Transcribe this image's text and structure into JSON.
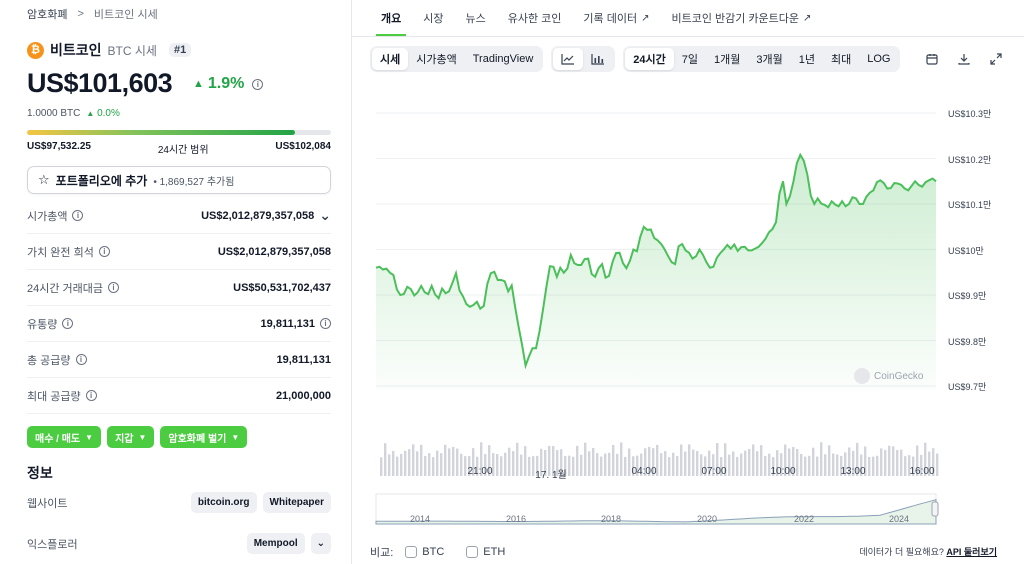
{
  "breadcrumb": {
    "home": "암호화폐",
    "separator": ">",
    "current": "비트코인 시세"
  },
  "coin": {
    "name": "비트코인",
    "symbol_label": "BTC 시세",
    "rank": "#1",
    "logo_glyph": "₿",
    "logo_color": "#f7931a"
  },
  "price": {
    "value": "US$101,603",
    "change": "1.9%",
    "change_color": "#22a447",
    "btc_value": "1.0000 BTC",
    "btc_change": "0.0%"
  },
  "range_24h": {
    "low": "US$97,532.25",
    "label": "24시간 범위",
    "high": "US$102,084",
    "position": 0.88
  },
  "portfolio": {
    "label": "포트폴리오에 추가",
    "count": "• 1,869,527 추가됨"
  },
  "stats": [
    {
      "label": "시가총액",
      "value": "US$2,012,879,357,058",
      "has_info": true,
      "suffix": "chevron-down"
    },
    {
      "label": "가치 완전 희석",
      "value": "US$2,012,879,357,058",
      "has_info": true,
      "suffix": ""
    },
    {
      "label": "24시간 거래대금",
      "value": "US$50,531,702,437",
      "has_info": true,
      "suffix": ""
    },
    {
      "label": "유통량",
      "value": "19,811,131",
      "has_info": true,
      "suffix": "info"
    },
    {
      "label": "총 공급량",
      "value": "19,811,131",
      "has_info": true,
      "suffix": ""
    },
    {
      "label": "최대 공급량",
      "value": "21,000,000",
      "has_info": true,
      "suffix": ""
    }
  ],
  "actions": [
    "매수 / 매도",
    "지갑",
    "암호화폐 벌기"
  ],
  "info": {
    "heading": "정보",
    "website_label": "웹사이트",
    "website_links": [
      "bitcoin.org",
      "Whitepaper"
    ],
    "explorer_label": "익스플로러",
    "explorer_links": [
      "Mempool"
    ]
  },
  "tabs": [
    {
      "label": "개요",
      "active": true,
      "external": false
    },
    {
      "label": "시장",
      "active": false,
      "external": false
    },
    {
      "label": "뉴스",
      "active": false,
      "external": false
    },
    {
      "label": "유사한 코인",
      "active": false,
      "external": false
    },
    {
      "label": "기록 데이터",
      "active": false,
      "external": true
    },
    {
      "label": "비트코인 반감기 카운트다운",
      "active": false,
      "external": true
    }
  ],
  "toolbar": {
    "views": [
      {
        "label": "시세",
        "on": true
      },
      {
        "label": "시가총액",
        "on": false
      },
      {
        "label": "TradingView",
        "on": false
      }
    ],
    "chart_types": [
      "line-chart-icon",
      "bar-chart-icon"
    ],
    "ranges": [
      {
        "label": "24시간",
        "on": true
      },
      {
        "label": "7일",
        "on": false
      },
      {
        "label": "1개월",
        "on": false
      },
      {
        "label": "3개월",
        "on": false
      },
      {
        "label": "1년",
        "on": false
      },
      {
        "label": "최대",
        "on": false
      },
      {
        "label": "LOG",
        "on": false
      }
    ],
    "icons": [
      "calendar-icon",
      "download-icon",
      "expand-icon"
    ]
  },
  "watermark": "CoinGecko",
  "compare": {
    "label": "비교:",
    "options": [
      "BTC",
      "ETH"
    ]
  },
  "api_note": {
    "text": "데이터가 더 필요해요?",
    "link": "API 둘러보기"
  },
  "chart_data": {
    "type": "area",
    "x_ticks": [
      "21:00",
      "17. 1월",
      "04:00",
      "07:00",
      "10:00",
      "13:00",
      "16:00"
    ],
    "y_ticks": [
      "US$10.3만",
      "US$10.2만",
      "US$10.1만",
      "US$10만",
      "US$9.9만",
      "US$9.8만",
      "US$9.7만"
    ],
    "ylim": [
      97000,
      103000
    ],
    "line_color": "#4bbf5a",
    "series": [
      {
        "values": [
          99600,
          99620,
          99560,
          99580,
          99490,
          99440,
          99120,
          99000,
          99020,
          99180,
          99130,
          98990,
          99060,
          99200,
          99060,
          99020,
          99200,
          99010,
          98930,
          99140,
          99040,
          99080,
          99270,
          99480,
          99100,
          98970,
          98800,
          98740,
          98780,
          98850,
          98700,
          98760,
          99240,
          99480,
          99510,
          99330,
          99330,
          99300,
          99080,
          99210,
          98740,
          98300,
          97900,
          97450,
          97650,
          97830,
          97830,
          98200,
          98680,
          99180,
          99630,
          99620,
          99400,
          99600,
          99490,
          99580,
          99880,
          99700,
          99660,
          99660,
          99790,
          99800,
          99460,
          99400,
          99590,
          99680,
          99380,
          99420,
          99720,
          99920,
          99930,
          99700,
          99590,
          99750,
          100000,
          99960,
          100280,
          100500,
          100430,
          100440,
          100250,
          100200,
          100120,
          100000,
          99850,
          99720,
          99680,
          100070,
          100120,
          99980,
          99930,
          99800,
          99850,
          100000,
          99880,
          99720,
          99600,
          99620,
          99820,
          99920,
          100000,
          100100,
          100020,
          100110,
          99970,
          100050,
          100060,
          99980,
          99980,
          100020,
          100060,
          100140,
          100240,
          100380,
          100450,
          100600,
          101230,
          101500,
          101000,
          101170,
          101490,
          101900,
          102080,
          101950,
          101650,
          101180,
          101000,
          101120,
          101010,
          100980,
          100930,
          101060,
          100990,
          100950,
          101060,
          100950,
          101000,
          101150,
          101120,
          101000,
          101000,
          101160,
          101250,
          101300,
          101480,
          101520,
          101460,
          101340,
          101350,
          101460,
          101450,
          101420,
          101340,
          101300,
          101400,
          101500,
          101420,
          101380,
          101480,
          101520,
          101560,
          101500
        ]
      }
    ],
    "navigator_ticks": [
      "2014",
      "2016",
      "2018",
      "2020",
      "2022",
      "2024"
    ]
  }
}
